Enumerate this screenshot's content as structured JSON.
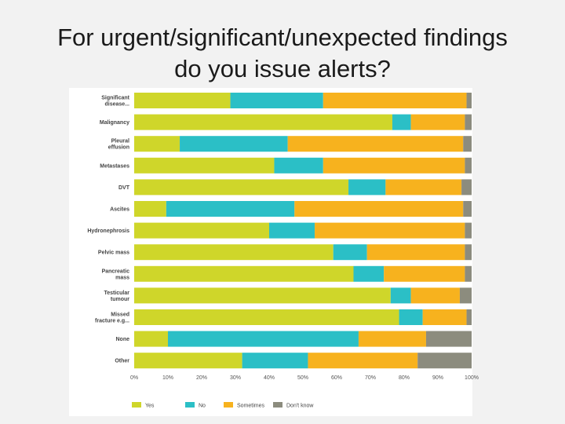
{
  "slide": {
    "title": "For urgent/significant/unexpected findings\ndo you issue alerts?"
  },
  "chart_data": {
    "type": "bar",
    "orientation": "horizontal",
    "stacked": true,
    "categories": [
      [
        "Significant",
        "disease..."
      ],
      [
        "Malignancy"
      ],
      [
        "Pleural",
        "effusion"
      ],
      [
        "Metastases"
      ],
      [
        "DVT"
      ],
      [
        "Ascites"
      ],
      [
        "Hydronephrosis"
      ],
      [
        "Pelvic mass"
      ],
      [
        "Pancreatic",
        "mass"
      ],
      [
        "Testicular",
        "tumour"
      ],
      [
        "Missed",
        "fracture e.g..."
      ],
      [
        "None"
      ],
      [
        "Other"
      ]
    ],
    "series": [
      {
        "name": "Yes",
        "color": "#cfd62a",
        "values": [
          28.5,
          76.5,
          13.5,
          41.5,
          63.5,
          9.5,
          40,
          59,
          65,
          76,
          78.5,
          10,
          32
        ]
      },
      {
        "name": "No",
        "color": "#2bbfc6",
        "values": [
          27.5,
          5.5,
          32,
          14.5,
          11,
          38,
          13.5,
          10,
          9,
          6,
          7,
          56.5,
          19.5
        ]
      },
      {
        "name": "Sometimes",
        "color": "#f7b21e",
        "values": [
          42.5,
          16,
          52,
          42,
          22.5,
          50,
          44.5,
          29,
          24,
          14.5,
          13,
          20,
          32.5
        ]
      },
      {
        "name": "Don't know",
        "color": "#8c8c7e",
        "values": [
          1.5,
          2,
          2.5,
          2,
          3,
          2.5,
          2,
          2,
          2,
          3.5,
          1.5,
          13.5,
          16
        ]
      }
    ],
    "x_ticks": [
      "0%",
      "10%",
      "20%",
      "30%",
      "40%",
      "50%",
      "60%",
      "70%",
      "80%",
      "90%",
      "100%"
    ],
    "xlim": [
      0,
      100
    ],
    "grid": false,
    "legend_position": "bottom-left"
  }
}
